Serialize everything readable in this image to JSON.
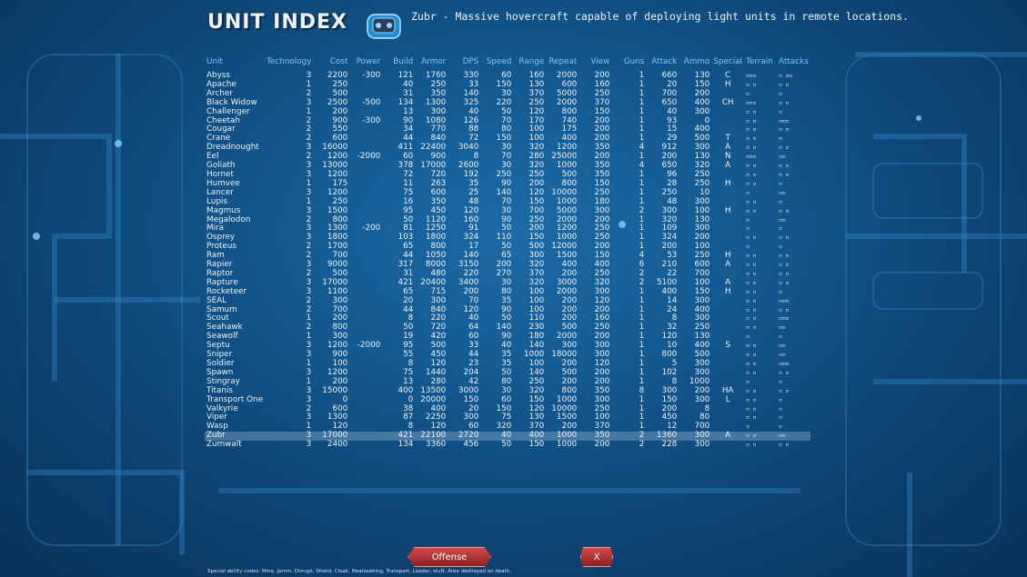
{
  "header": {
    "title": "UNIT INDEX",
    "description": "Zubr - Massive hovercraft capable of deploying light units in remote locations."
  },
  "columns": {
    "unit": "Unit",
    "technology": "Technology",
    "cost": "Cost",
    "power": "Power",
    "build": "Build",
    "armor": "Armor",
    "dps": "DPS",
    "speed": "Speed",
    "range": "Range",
    "repeat": "Repeat",
    "view": "View",
    "guns": "Guns",
    "attack": "Attack",
    "ammo": "Ammo",
    "special": "Special",
    "terrain": "Terrain",
    "attacks": "Attacks"
  },
  "rows": [
    [
      "Abyss",
      "3",
      "2200",
      "-300",
      "121",
      "1760",
      "330",
      "60",
      "160",
      "2000",
      "200",
      "1",
      "660",
      "130",
      "C"
    ],
    [
      "Apache",
      "1",
      "250",
      "",
      "40",
      "250",
      "33",
      "150",
      "130",
      "600",
      "160",
      "1",
      "20",
      "150",
      "H"
    ],
    [
      "Archer",
      "2",
      "500",
      "",
      "31",
      "350",
      "140",
      "30",
      "370",
      "5000",
      "250",
      "1",
      "700",
      "200",
      ""
    ],
    [
      "Black Widow",
      "3",
      "2500",
      "-500",
      "134",
      "1300",
      "325",
      "220",
      "250",
      "2000",
      "370",
      "1",
      "650",
      "400",
      "CH"
    ],
    [
      "Challenger",
      "1",
      "200",
      "",
      "13",
      "300",
      "40",
      "50",
      "120",
      "800",
      "150",
      "1",
      "40",
      "300",
      ""
    ],
    [
      "Cheetah",
      "2",
      "900",
      "-300",
      "90",
      "1080",
      "126",
      "70",
      "170",
      "740",
      "200",
      "1",
      "93",
      "0",
      ""
    ],
    [
      "Cougar",
      "2",
      "550",
      "",
      "34",
      "770",
      "88",
      "80",
      "100",
      "175",
      "200",
      "1",
      "15",
      "400",
      ""
    ],
    [
      "Crane",
      "2",
      "600",
      "",
      "44",
      "840",
      "72",
      "150",
      "100",
      "400",
      "200",
      "1",
      "29",
      "500",
      "T"
    ],
    [
      "Dreadnought",
      "3",
      "16000",
      "",
      "411",
      "22400",
      "3040",
      "30",
      "320",
      "1200",
      "350",
      "4",
      "912",
      "300",
      "A"
    ],
    [
      "Eel",
      "2",
      "1200",
      "-2000",
      "60",
      "900",
      "8",
      "70",
      "280",
      "25000",
      "200",
      "1",
      "200",
      "130",
      "N"
    ],
    [
      "Goliath",
      "3",
      "13000",
      "",
      "378",
      "17000",
      "2600",
      "30",
      "320",
      "1000",
      "350",
      "4",
      "650",
      "320",
      "A"
    ],
    [
      "Hornet",
      "3",
      "1200",
      "",
      "72",
      "720",
      "192",
      "250",
      "250",
      "500",
      "350",
      "1",
      "96",
      "250",
      ""
    ],
    [
      "Humvee",
      "1",
      "175",
      "",
      "11",
      "263",
      "35",
      "90",
      "200",
      "800",
      "150",
      "1",
      "28",
      "250",
      "H"
    ],
    [
      "Lancer",
      "3",
      "1200",
      "",
      "75",
      "600",
      "25",
      "140",
      "120",
      "10000",
      "250",
      "1",
      "250",
      "10",
      ""
    ],
    [
      "Lupis",
      "1",
      "250",
      "",
      "16",
      "350",
      "48",
      "70",
      "150",
      "1000",
      "180",
      "1",
      "48",
      "300",
      ""
    ],
    [
      "Magmus",
      "3",
      "1500",
      "",
      "95",
      "450",
      "120",
      "30",
      "700",
      "5000",
      "300",
      "2",
      "300",
      "100",
      "H"
    ],
    [
      "Megalodon",
      "2",
      "800",
      "",
      "50",
      "1120",
      "160",
      "90",
      "250",
      "2000",
      "200",
      "1",
      "320",
      "130",
      ""
    ],
    [
      "Mira",
      "3",
      "1300",
      "-200",
      "81",
      "1250",
      "91",
      "50",
      "200",
      "1200",
      "250",
      "1",
      "109",
      "300",
      ""
    ],
    [
      "Osprey",
      "3",
      "1800",
      "",
      "103",
      "1800",
      "324",
      "110",
      "150",
      "1000",
      "250",
      "1",
      "324",
      "200",
      ""
    ],
    [
      "Proteus",
      "2",
      "1700",
      "",
      "65",
      "800",
      "17",
      "50",
      "500",
      "12000",
      "200",
      "1",
      "200",
      "100",
      ""
    ],
    [
      "Ram",
      "2",
      "700",
      "",
      "44",
      "1050",
      "140",
      "65",
      "300",
      "1500",
      "150",
      "4",
      "53",
      "250",
      "H"
    ],
    [
      "Rapier",
      "3",
      "9000",
      "",
      "317",
      "8000",
      "3150",
      "200",
      "320",
      "400",
      "400",
      "6",
      "210",
      "600",
      "A"
    ],
    [
      "Raptor",
      "2",
      "500",
      "",
      "31",
      "480",
      "220",
      "270",
      "370",
      "200",
      "250",
      "2",
      "22",
      "700",
      ""
    ],
    [
      "Rapture",
      "3",
      "17000",
      "",
      "421",
      "20400",
      "3400",
      "30",
      "320",
      "3000",
      "320",
      "2",
      "5100",
      "100",
      "A"
    ],
    [
      "Rocketeer",
      "3",
      "1100",
      "",
      "65",
      "715",
      "200",
      "80",
      "100",
      "2000",
      "300",
      "1",
      "400",
      "150",
      "H"
    ],
    [
      "SEAL",
      "2",
      "300",
      "",
      "20",
      "300",
      "70",
      "35",
      "100",
      "200",
      "120",
      "1",
      "14",
      "300",
      ""
    ],
    [
      "Samum",
      "2",
      "700",
      "",
      "44",
      "840",
      "120",
      "90",
      "100",
      "200",
      "200",
      "1",
      "24",
      "400",
      ""
    ],
    [
      "Scout",
      "1",
      "200",
      "",
      "8",
      "220",
      "40",
      "50",
      "110",
      "200",
      "160",
      "1",
      "8",
      "300",
      ""
    ],
    [
      "Seahawk",
      "2",
      "800",
      "",
      "50",
      "720",
      "64",
      "140",
      "230",
      "500",
      "250",
      "1",
      "32",
      "250",
      ""
    ],
    [
      "Seawolf",
      "1",
      "300",
      "",
      "19",
      "420",
      "60",
      "90",
      "180",
      "2000",
      "200",
      "1",
      "120",
      "130",
      ""
    ],
    [
      "Septu",
      "3",
      "1200",
      "-2000",
      "95",
      "500",
      "33",
      "40",
      "140",
      "300",
      "300",
      "1",
      "10",
      "400",
      "S"
    ],
    [
      "Sniper",
      "3",
      "900",
      "",
      "55",
      "450",
      "44",
      "35",
      "1000",
      "18000",
      "300",
      "1",
      "800",
      "500",
      ""
    ],
    [
      "Soldier",
      "1",
      "100",
      "",
      "8",
      "120",
      "23",
      "35",
      "100",
      "200",
      "120",
      "1",
      "5",
      "300",
      ""
    ],
    [
      "Spawn",
      "3",
      "1200",
      "",
      "75",
      "1440",
      "204",
      "50",
      "140",
      "500",
      "200",
      "1",
      "102",
      "300",
      ""
    ],
    [
      "Stingray",
      "1",
      "200",
      "",
      "13",
      "280",
      "42",
      "80",
      "250",
      "200",
      "200",
      "1",
      "8",
      "1000",
      ""
    ],
    [
      "Titanis",
      "3",
      "15000",
      "",
      "400",
      "13500",
      "3000",
      "30",
      "320",
      "800",
      "350",
      "8",
      "300",
      "200",
      "HA"
    ],
    [
      "Transport One",
      "3",
      "0",
      "",
      "0",
      "20000",
      "150",
      "60",
      "150",
      "1000",
      "300",
      "1",
      "150",
      "300",
      "L"
    ],
    [
      "Valkyrie",
      "2",
      "600",
      "",
      "38",
      "400",
      "20",
      "150",
      "120",
      "10000",
      "250",
      "1",
      "200",
      "8",
      ""
    ],
    [
      "Viper",
      "3",
      "1300",
      "",
      "87",
      "2250",
      "300",
      "75",
      "130",
      "1500",
      "100",
      "1",
      "450",
      "80",
      ""
    ],
    [
      "Wasp",
      "1",
      "120",
      "",
      "8",
      "120",
      "60",
      "320",
      "370",
      "200",
      "370",
      "1",
      "12",
      "700",
      ""
    ],
    [
      "Zubr",
      "3",
      "17000",
      "",
      "421",
      "22100",
      "2720",
      "40",
      "400",
      "1000",
      "350",
      "2",
      "1360",
      "300",
      "A"
    ],
    [
      "Zumwalt",
      "3",
      "2400",
      "",
      "134",
      "3360",
      "456",
      "50",
      "150",
      "1000",
      "200",
      "2",
      "228",
      "300",
      ""
    ]
  ],
  "terrain": [
    "▫▫▫",
    "▫ ▫",
    "▫",
    "▫▫▫",
    "▫ ▫",
    "▫ ▫",
    "▫ ▫",
    "▫ ▫",
    "▫ ▫",
    "▫▫▫",
    "▫ ▫",
    "▫ ▫",
    "▫ ▫",
    "▫",
    "▫ ▫",
    "▫ ▫",
    "▫",
    "▫",
    "▫ ▫",
    "▫",
    "▫ ▫",
    "▫ ▫",
    "▫ ▫",
    "▫ ▫",
    "▫ ▫",
    "▫ ▫",
    "▫ ▫",
    "▫ ▫",
    "▫ ▫",
    "▫",
    "▫ ▫",
    "▫ ▫",
    "▫ ▫",
    "▫ ▫",
    "▫",
    "▫ ▫",
    "▫ ▫",
    "▫ ▫",
    "▫ ▫",
    "▫",
    "▫ ▫",
    "▫ ▫"
  ],
  "attacks": [
    "▫ ▫▫",
    "▫ ▫",
    "▫",
    "▫ ▫",
    "▫",
    "▫▫▫",
    "▫ ▫",
    "▫",
    "▫ ▫",
    "▫▫",
    "▫ ▫",
    "▫ ▫",
    "▫",
    "▫▫",
    "▫",
    "▫ ▫",
    "▫▫",
    "▫",
    "▫ ▫",
    "▫",
    "▫ ▫",
    "▫ ▫",
    "▫ ▫",
    "▫ ▫",
    "▫",
    "▫▫▫",
    "▫ ▫",
    "▫▫▫",
    "▫▫",
    "▫",
    "▫▫",
    "▫▫",
    "▫▫▫",
    "▫ ▫",
    "▫",
    "▫ ▫",
    "▫",
    "▫",
    "▫",
    "▫",
    "▫▫",
    "▫ ▫"
  ],
  "highlighted_unit": "Zubr",
  "buttons": {
    "offense": "Offense",
    "close": "X"
  },
  "footer": "Special ability codes: Mine, Jamm, Disrupt, Shield, Cloak, Heatseeking, Transport, Loader, stuN, Area destroyed on death."
}
